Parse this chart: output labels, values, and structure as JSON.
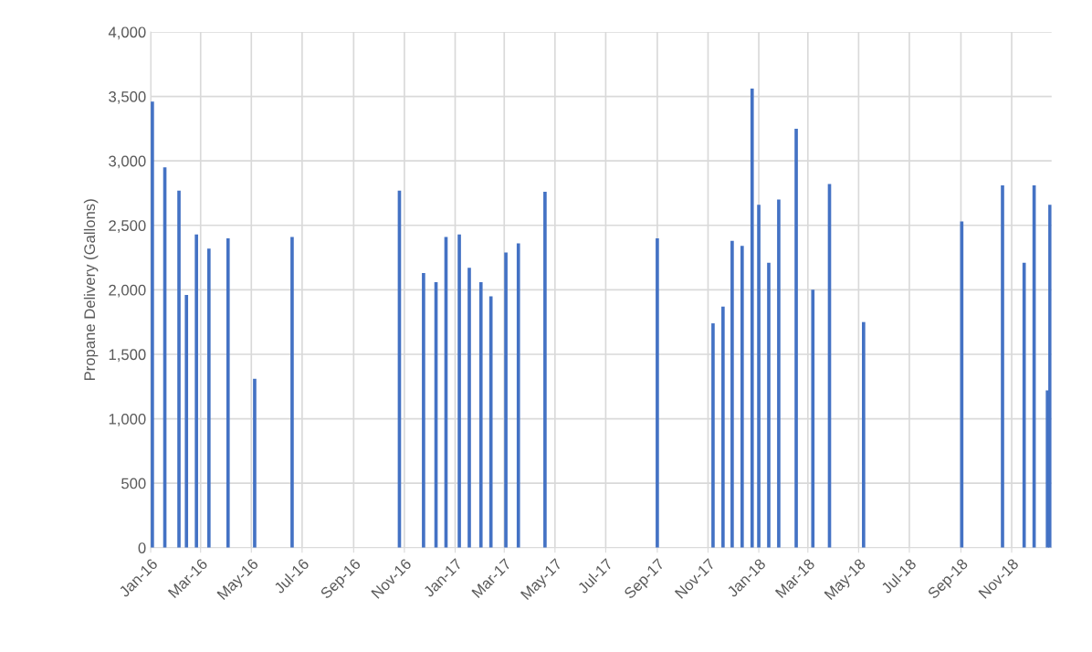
{
  "chart_data": {
    "type": "bar",
    "ylabel": "Propane Delivery (Gallons)",
    "x": [
      "2016-01-03",
      "2016-01-18",
      "2016-02-04",
      "2016-02-13",
      "2016-02-25",
      "2016-03-11",
      "2016-04-03",
      "2016-05-05",
      "2016-06-19",
      "2016-10-26",
      "2016-11-24",
      "2016-12-09",
      "2016-12-21",
      "2017-01-06",
      "2017-01-18",
      "2017-02-01",
      "2017-02-13",
      "2017-03-03",
      "2017-03-18",
      "2017-04-19",
      "2017-09-01",
      "2017-11-07",
      "2017-11-19",
      "2017-11-30",
      "2017-12-12",
      "2017-12-24",
      "2018-01-01",
      "2018-01-13",
      "2018-01-25",
      "2018-02-15",
      "2018-03-07",
      "2018-03-27",
      "2018-05-07",
      "2018-09-02",
      "2018-10-21",
      "2018-11-16",
      "2018-11-28",
      "2018-12-14",
      "2018-12-17"
    ],
    "values": [
      3460,
      2950,
      2770,
      1960,
      2430,
      2320,
      2400,
      1310,
      2410,
      2770,
      2130,
      2060,
      2410,
      2430,
      2170,
      2060,
      1950,
      2290,
      2360,
      2760,
      2400,
      1740,
      1870,
      2380,
      2340,
      3560,
      2660,
      2210,
      2700,
      3250,
      2000,
      2820,
      1750,
      2530,
      2810,
      2210,
      2810,
      1220,
      2660
    ],
    "color": "#4472c4",
    "xlim": [
      "2016-01-01",
      "2018-12-19"
    ],
    "xticks": [
      {
        "value": "2016-01-01",
        "label": "Jan-16"
      },
      {
        "value": "2016-03-01",
        "label": "Mar-16"
      },
      {
        "value": "2016-05-01",
        "label": "May-16"
      },
      {
        "value": "2016-07-01",
        "label": "Jul-16"
      },
      {
        "value": "2016-09-01",
        "label": "Sep-16"
      },
      {
        "value": "2016-11-01",
        "label": "Nov-16"
      },
      {
        "value": "2017-01-01",
        "label": "Jan-17"
      },
      {
        "value": "2017-03-01",
        "label": "Mar-17"
      },
      {
        "value": "2017-05-01",
        "label": "May-17"
      },
      {
        "value": "2017-07-01",
        "label": "Jul-17"
      },
      {
        "value": "2017-09-01",
        "label": "Sep-17"
      },
      {
        "value": "2017-11-01",
        "label": "Nov-17"
      },
      {
        "value": "2018-01-01",
        "label": "Jan-18"
      },
      {
        "value": "2018-03-01",
        "label": "Mar-18"
      },
      {
        "value": "2018-05-01",
        "label": "May-18"
      },
      {
        "value": "2018-07-01",
        "label": "Jul-18"
      },
      {
        "value": "2018-09-01",
        "label": "Sep-18"
      },
      {
        "value": "2018-11-01",
        "label": "Nov-18"
      }
    ],
    "ylim": [
      0,
      4000
    ],
    "yticks": [
      0,
      {
        "value": 500,
        "label": "500"
      },
      {
        "value": 1000,
        "label": "1,000"
      },
      {
        "value": 1500,
        "label": "1,500"
      },
      {
        "value": 2000,
        "label": "2,000"
      },
      {
        "value": 2500,
        "label": "2,500"
      },
      {
        "value": 3000,
        "label": "3,000"
      },
      {
        "value": 3500,
        "label": "3,500"
      },
      {
        "value": 4000,
        "label": "4,000"
      }
    ],
    "grid": true
  }
}
